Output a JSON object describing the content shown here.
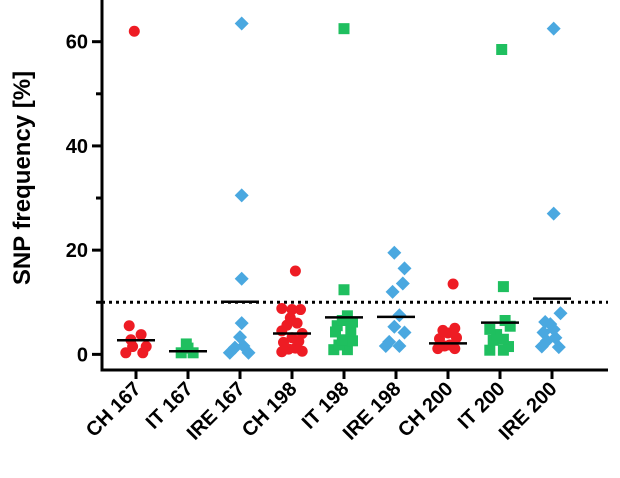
{
  "chart_data": {
    "type": "scatter",
    "title": "",
    "xlabel": "",
    "ylabel": "SNP frequency [%]",
    "ylim": [
      -3,
      68
    ],
    "yticks": [
      0,
      20,
      40,
      60
    ],
    "threshold": 10,
    "categories": [
      "CH 167",
      "IT 167",
      "IRE 167",
      "CH 198",
      "IT 198",
      "IRE 198",
      "CH 200",
      "IT 200",
      "IRE 200"
    ],
    "series": [
      {
        "category": "CH 167",
        "marker": "circle",
        "color": "#ee1c24",
        "mean": 2.7,
        "points": [
          [
            -0.3,
            0.3
          ],
          [
            0.2,
            0.3
          ],
          [
            -0.1,
            1.5
          ],
          [
            0.3,
            1.5
          ],
          [
            -0.15,
            2.8
          ],
          [
            0.15,
            3.8
          ],
          [
            -0.2,
            5.5
          ],
          [
            -0.05,
            62
          ]
        ]
      },
      {
        "category": "IT 167",
        "marker": "square",
        "color": "#1fbf5f",
        "mean": 0.6,
        "points": [
          [
            -0.2,
            0.3
          ],
          [
            0.15,
            0.3
          ],
          [
            0.0,
            1.2
          ],
          [
            -0.05,
            2.0
          ]
        ]
      },
      {
        "category": "IRE 167",
        "marker": "diamond",
        "color": "#4aa8e0",
        "mean": 10.1,
        "points": [
          [
            -0.3,
            0.3
          ],
          [
            0.25,
            0.3
          ],
          [
            -0.15,
            1.3
          ],
          [
            0.1,
            1.6
          ],
          [
            0.0,
            3.3
          ],
          [
            0.05,
            6.0
          ],
          [
            0.05,
            14.5
          ],
          [
            0.05,
            30.5
          ],
          [
            0.05,
            63.5
          ]
        ]
      },
      {
        "category": "CH 198",
        "marker": "circle",
        "color": "#ee1c24",
        "mean": 4.0,
        "points": [
          [
            -0.3,
            0.5
          ],
          [
            0.3,
            0.6
          ],
          [
            -0.1,
            1.0
          ],
          [
            0.1,
            1.2
          ],
          [
            -0.25,
            2.3
          ],
          [
            0.2,
            2.5
          ],
          [
            0.0,
            3.2
          ],
          [
            -0.3,
            4.5
          ],
          [
            0.3,
            4.0
          ],
          [
            -0.15,
            5.6
          ],
          [
            0.15,
            6.0
          ],
          [
            -0.05,
            7.0
          ],
          [
            0.0,
            8.6
          ],
          [
            0.25,
            8.6
          ],
          [
            -0.3,
            8.8
          ],
          [
            0.1,
            16.0
          ]
        ]
      },
      {
        "category": "IT 198",
        "marker": "square",
        "color": "#1fbf5f",
        "mean": 7.1,
        "points": [
          [
            -0.3,
            0.9
          ],
          [
            0.1,
            0.9
          ],
          [
            -0.15,
            1.8
          ],
          [
            0.25,
            2.6
          ],
          [
            -0.05,
            2.8
          ],
          [
            -0.25,
            4.3
          ],
          [
            0.2,
            4.5
          ],
          [
            -0.2,
            5.5
          ],
          [
            -0.05,
            6.5
          ],
          [
            0.25,
            6.2
          ],
          [
            0.1,
            7.4
          ],
          [
            0.0,
            12.4
          ],
          [
            0.0,
            62.5
          ]
        ]
      },
      {
        "category": "IRE 198",
        "marker": "diamond",
        "color": "#4aa8e0",
        "mean": 7.2,
        "points": [
          [
            -0.3,
            1.6
          ],
          [
            0.1,
            1.6
          ],
          [
            -0.2,
            2.4
          ],
          [
            0.25,
            4.2
          ],
          [
            -0.05,
            5.3
          ],
          [
            0.1,
            7.5
          ],
          [
            -0.1,
            12.0
          ],
          [
            0.2,
            13.6
          ],
          [
            0.25,
            16.5
          ],
          [
            -0.05,
            19.5
          ]
        ]
      },
      {
        "category": "CH 200",
        "marker": "circle",
        "color": "#ee1c24",
        "mean": 2.1,
        "points": [
          [
            -0.3,
            1.1
          ],
          [
            0.2,
            1.1
          ],
          [
            -0.1,
            1.6
          ],
          [
            0.05,
            1.8
          ],
          [
            -0.25,
            3.0
          ],
          [
            0.25,
            3.2
          ],
          [
            0.0,
            4.1
          ],
          [
            -0.15,
            4.6
          ],
          [
            0.2,
            5.0
          ],
          [
            0.15,
            13.5
          ]
        ]
      },
      {
        "category": "IT 200",
        "marker": "square",
        "color": "#1fbf5f",
        "mean": 6.1,
        "points": [
          [
            -0.3,
            0.8
          ],
          [
            0.1,
            0.8
          ],
          [
            0.25,
            1.5
          ],
          [
            -0.2,
            2.7
          ],
          [
            0.1,
            2.9
          ],
          [
            -0.1,
            3.8
          ],
          [
            -0.3,
            4.8
          ],
          [
            0.3,
            5.4
          ],
          [
            0.15,
            6.5
          ],
          [
            0.1,
            13.0
          ],
          [
            0.05,
            58.5
          ]
        ]
      },
      {
        "category": "IRE 200",
        "marker": "diamond",
        "color": "#4aa8e0",
        "mean": 10.7,
        "points": [
          [
            -0.3,
            1.5
          ],
          [
            0.2,
            1.4
          ],
          [
            -0.15,
            2.6
          ],
          [
            0.1,
            3.2
          ],
          [
            -0.25,
            4.2
          ],
          [
            0.05,
            4.8
          ],
          [
            -0.05,
            5.8
          ],
          [
            -0.2,
            6.2
          ],
          [
            0.25,
            7.9
          ],
          [
            0.05,
            27.0
          ],
          [
            0.05,
            62.5
          ]
        ]
      }
    ]
  }
}
